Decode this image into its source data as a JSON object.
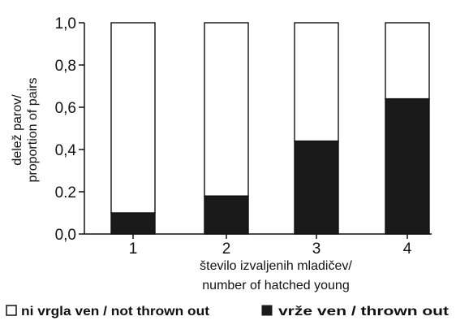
{
  "chart_data": {
    "type": "bar",
    "stacked": true,
    "categories": [
      "1",
      "2",
      "3",
      "4"
    ],
    "series": [
      {
        "name": "vrže ven / thrown out",
        "values": [
          0.1,
          0.18,
          0.44,
          0.64
        ],
        "color": "#1a1a1a"
      },
      {
        "name": "ni vrgla ven / not thrown out",
        "values": [
          0.9,
          0.82,
          0.56,
          0.36
        ],
        "color": "#ffffff"
      }
    ],
    "ylim": [
      0.0,
      1.0
    ],
    "yticks": [
      {
        "value": 0.0,
        "label": "0,0"
      },
      {
        "value": 0.2,
        "label": "0.2"
      },
      {
        "value": 0.4,
        "label": "0,4"
      },
      {
        "value": 0.6,
        "label": "0,6"
      },
      {
        "value": 0.8,
        "label": "0,8"
      },
      {
        "value": 1.0,
        "label": "1,0"
      }
    ],
    "ylabel_lines": [
      "delež parov/",
      "proportion of pairs"
    ],
    "xlabel_lines": [
      "število izvaljenih mladičev/",
      "number of hatched young"
    ],
    "legend": {
      "placement": "bottom",
      "items": [
        {
          "marker": "open-square",
          "label": "ni vrgla ven / not thrown out"
        },
        {
          "marker": "filled-square",
          "label": "vrže ven / thrown out"
        }
      ]
    },
    "grid": false
  }
}
